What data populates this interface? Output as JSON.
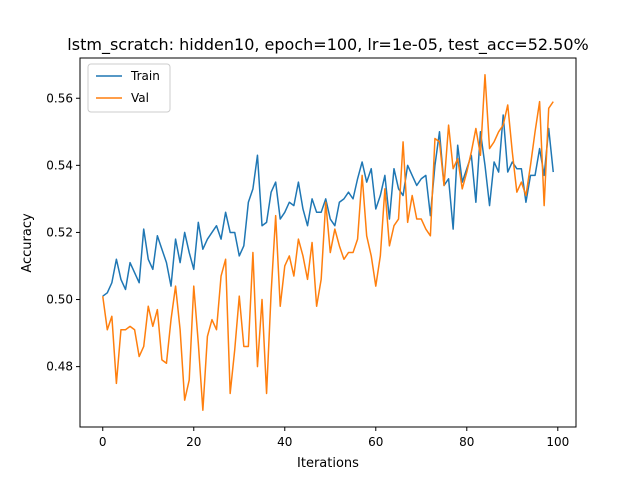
{
  "chart_data": {
    "type": "line",
    "title": "lstm_scratch: hidden10, epoch=100, lr=1e-05, test_acc=52.50%",
    "xlabel": "Iterations",
    "ylabel": "Accuracy",
    "xlim": [
      -5,
      104
    ],
    "ylim": [
      0.462,
      0.572
    ],
    "xticks": [
      0,
      20,
      40,
      60,
      80,
      100
    ],
    "yticks": [
      0.48,
      0.5,
      0.52,
      0.54,
      0.56
    ],
    "ytick_labels": [
      "0.48",
      "0.50",
      "0.52",
      "0.54",
      "0.56"
    ],
    "grid": false,
    "legend_position": "top-left",
    "series": [
      {
        "name": "Train",
        "color": "#1f77b4",
        "values": [
          0.501,
          0.502,
          0.505,
          0.512,
          0.506,
          0.503,
          0.511,
          0.508,
          0.505,
          0.521,
          0.512,
          0.509,
          0.519,
          0.515,
          0.511,
          0.504,
          0.518,
          0.511,
          0.52,
          0.514,
          0.509,
          0.523,
          0.515,
          0.518,
          0.52,
          0.522,
          0.518,
          0.526,
          0.52,
          0.52,
          0.513,
          0.516,
          0.529,
          0.533,
          0.543,
          0.522,
          0.523,
          0.532,
          0.535,
          0.524,
          0.526,
          0.529,
          0.528,
          0.535,
          0.527,
          0.522,
          0.53,
          0.526,
          0.526,
          0.53,
          0.524,
          0.522,
          0.529,
          0.53,
          0.532,
          0.53,
          0.536,
          0.541,
          0.535,
          0.539,
          0.527,
          0.531,
          0.537,
          0.524,
          0.539,
          0.533,
          0.531,
          0.54,
          0.537,
          0.534,
          0.536,
          0.537,
          0.525,
          0.54,
          0.55,
          0.534,
          0.536,
          0.521,
          0.546,
          0.535,
          0.539,
          0.543,
          0.529,
          0.55,
          0.54,
          0.528,
          0.541,
          0.538,
          0.555,
          0.538,
          0.541,
          0.539,
          0.539,
          0.529,
          0.537,
          0.537,
          0.545,
          0.537,
          0.551,
          0.538
        ]
      },
      {
        "name": "Val",
        "color": "#ff7f0e",
        "values": [
          0.501,
          0.491,
          0.495,
          0.475,
          0.491,
          0.491,
          0.492,
          0.491,
          0.483,
          0.486,
          0.498,
          0.492,
          0.497,
          0.482,
          0.481,
          0.494,
          0.504,
          0.491,
          0.47,
          0.476,
          0.504,
          0.487,
          0.467,
          0.489,
          0.494,
          0.491,
          0.507,
          0.512,
          0.472,
          0.485,
          0.501,
          0.486,
          0.486,
          0.514,
          0.48,
          0.5,
          0.472,
          0.502,
          0.525,
          0.498,
          0.51,
          0.513,
          0.507,
          0.518,
          0.513,
          0.506,
          0.517,
          0.498,
          0.506,
          0.529,
          0.514,
          0.521,
          0.516,
          0.512,
          0.514,
          0.514,
          0.518,
          0.537,
          0.519,
          0.513,
          0.504,
          0.513,
          0.533,
          0.516,
          0.522,
          0.524,
          0.547,
          0.523,
          0.531,
          0.524,
          0.524,
          0.521,
          0.519,
          0.548,
          0.547,
          0.534,
          0.552,
          0.539,
          0.542,
          0.533,
          0.538,
          0.544,
          0.551,
          0.543,
          0.567,
          0.545,
          0.547,
          0.55,
          0.552,
          0.558,
          0.544,
          0.532,
          0.535,
          0.531,
          0.54,
          0.55,
          0.559,
          0.528,
          0.557,
          0.559
        ]
      }
    ]
  }
}
